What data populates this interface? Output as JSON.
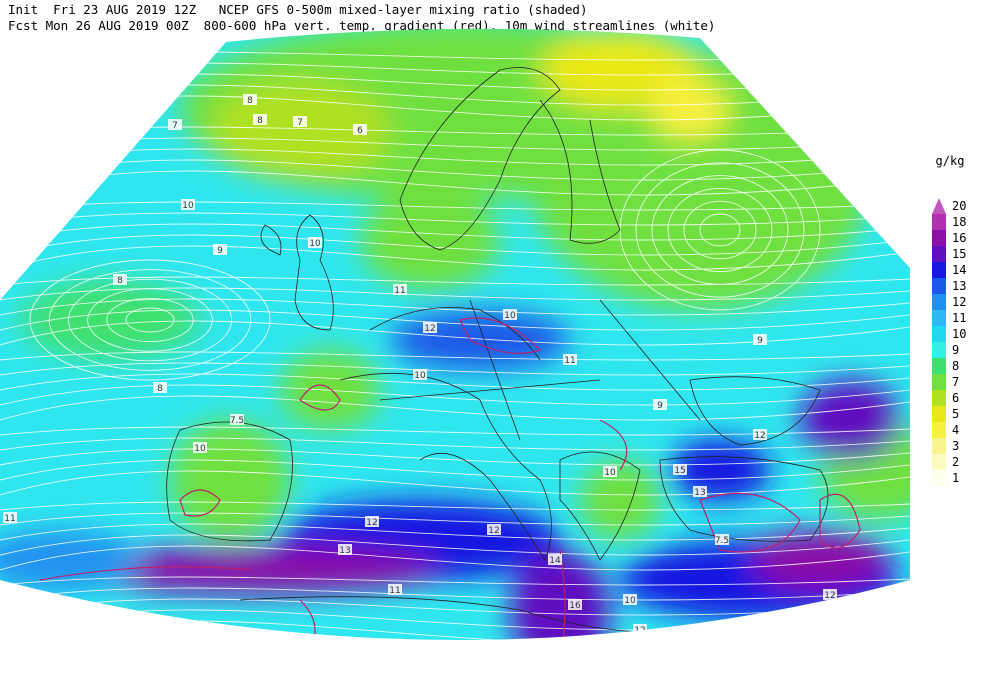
{
  "header": {
    "line1": "Init  Fri 23 AUG 2019 12Z   NCEP GFS 0-500m mixed-layer mixing ratio (shaded)",
    "line2": "Fcst Mon 26 AUG 2019 00Z  800-600 hPa vert. temp. gradient (red). 10m wind streamlines (white)"
  },
  "legend": {
    "unit": "g/kg",
    "levels": [
      {
        "value": 20,
        "color": "#c058c0"
      },
      {
        "value": 18,
        "color": "#b030b0"
      },
      {
        "value": 16,
        "color": "#8a10a8"
      },
      {
        "value": 15,
        "color": "#6010c0"
      },
      {
        "value": 14,
        "color": "#1818e0"
      },
      {
        "value": 13,
        "color": "#1a58e8"
      },
      {
        "value": 12,
        "color": "#2090f0"
      },
      {
        "value": 11,
        "color": "#30b8f4"
      },
      {
        "value": 10,
        "color": "#20d8f0"
      },
      {
        "value": 9,
        "color": "#30f0e8"
      },
      {
        "value": 8,
        "color": "#40e070"
      },
      {
        "value": 7,
        "color": "#70e040"
      },
      {
        "value": 6,
        "color": "#b0e020"
      },
      {
        "value": 5,
        "color": "#e8e818"
      },
      {
        "value": 4,
        "color": "#f8f040"
      },
      {
        "value": 3,
        "color": "#f8f490"
      },
      {
        "value": 2,
        "color": "#fcfcc0"
      },
      {
        "value": 1,
        "color": "#fffff0"
      }
    ]
  },
  "map_labels": [
    8,
    7,
    6,
    8,
    10,
    9,
    7,
    8,
    10,
    11,
    12,
    10,
    11,
    9,
    10,
    7.5,
    8,
    10,
    11,
    12,
    13,
    12,
    14,
    16,
    15,
    12,
    10,
    7.5,
    11,
    13,
    12,
    10,
    9,
    12
  ]
}
